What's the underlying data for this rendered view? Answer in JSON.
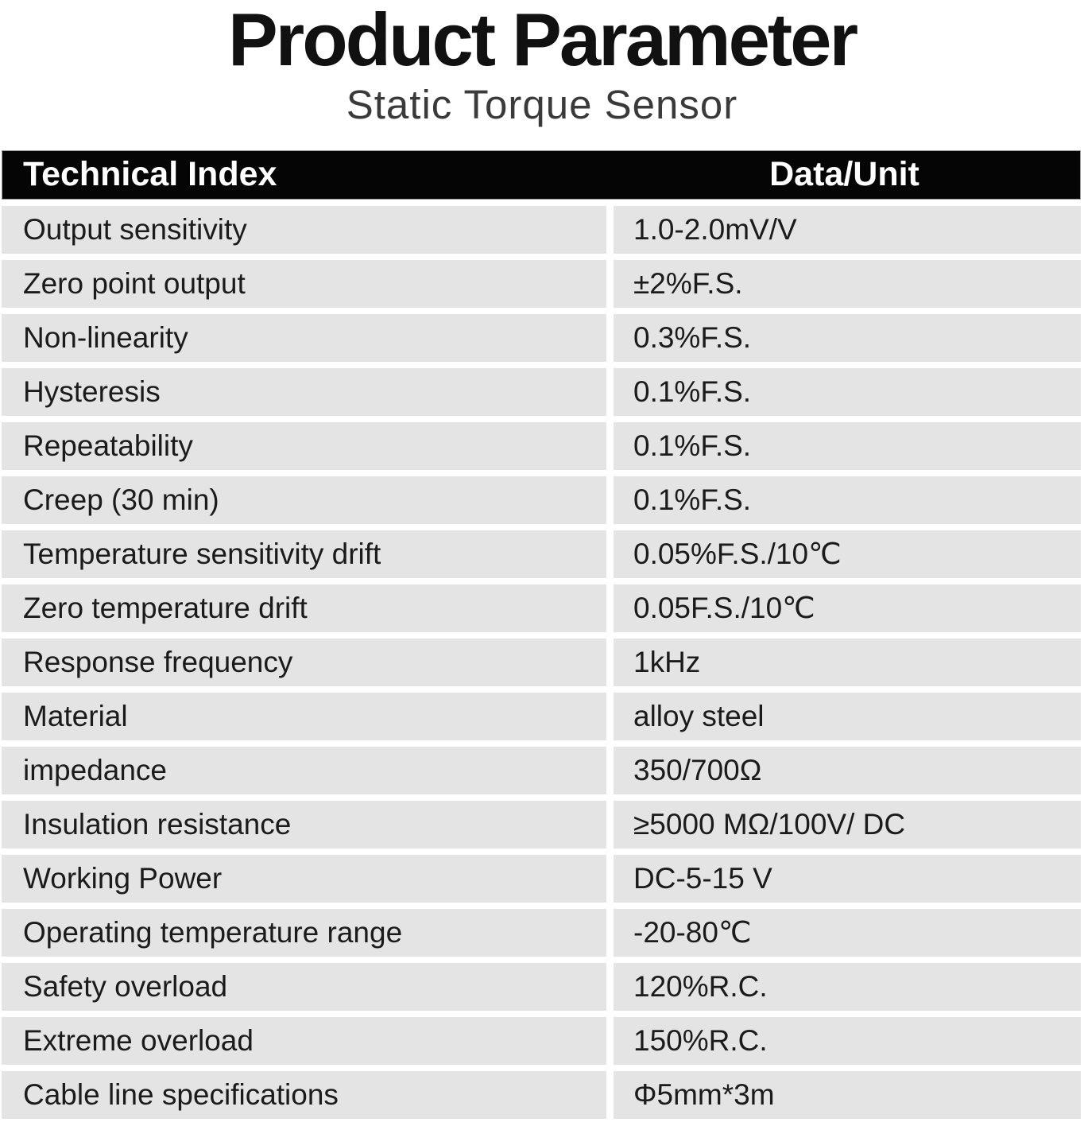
{
  "page": {
    "title": "Product Parameter",
    "subtitle": "Static Torque Sensor"
  },
  "colors": {
    "header_background": "#050505",
    "header_text": "#ffffff",
    "row_background": "#e4e4e4",
    "body_text": "#1b1b1b",
    "page_background": "#ffffff"
  },
  "table": {
    "headers": [
      "Technical Index",
      "Data/Unit"
    ],
    "rows": [
      {
        "label": "Output sensitivity",
        "value": "1.0-2.0mV/V"
      },
      {
        "label": "Zero point output",
        "value": "±2%F.S."
      },
      {
        "label": "Non-linearity",
        "value": "0.3%F.S."
      },
      {
        "label": "Hysteresis",
        "value": "0.1%F.S."
      },
      {
        "label": "Repeatability",
        "value": "0.1%F.S."
      },
      {
        "label": "Creep (30 min)",
        "value": "0.1%F.S."
      },
      {
        "label": "Temperature sensitivity drift",
        "value": "0.05%F.S./10℃"
      },
      {
        "label": "Zero temperature drift",
        "value": "0.05F.S./10℃"
      },
      {
        "label": "Response frequency",
        "value": "1kHz"
      },
      {
        "label": "Material",
        "value": "alloy steel"
      },
      {
        "label": "impedance",
        "value": "350/700Ω"
      },
      {
        "label": "Insulation resistance",
        "value": "≥5000 MΩ/100V/ DC"
      },
      {
        "label": "Working Power",
        "value": "DC-5-15 V"
      },
      {
        "label": "Operating temperature range",
        "value": "-20-80℃"
      },
      {
        "label": "Safety overload",
        "value": "120%R.C."
      },
      {
        "label": "Extreme overload",
        "value": "150%R.C."
      },
      {
        "label": "Cable line specifications",
        "value": "Φ5mm*3m"
      }
    ]
  }
}
